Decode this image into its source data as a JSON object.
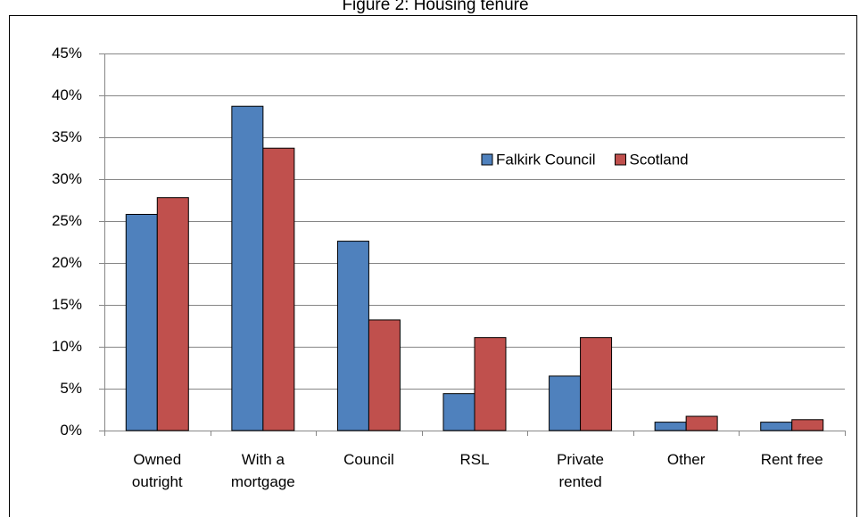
{
  "chart_data": {
    "type": "bar",
    "title": "Figure 2: Housing tenure",
    "categories": [
      "Owned\noutright",
      "With a\nmortgage",
      "Council",
      "RSL",
      "Private\nrented",
      "Other",
      "Rent free"
    ],
    "series": [
      {
        "name": "Falkirk Council",
        "color": "#4f81bd",
        "values": [
          25.8,
          38.7,
          22.6,
          4.4,
          6.5,
          1.0,
          1.0
        ]
      },
      {
        "name": "Scotland",
        "color": "#c0504d",
        "values": [
          27.8,
          33.7,
          13.2,
          11.1,
          11.1,
          1.7,
          1.3
        ]
      }
    ],
    "ylim": [
      0,
      45
    ],
    "yticks": [
      {
        "value": 0,
        "label": "0%"
      },
      {
        "value": 5,
        "label": "5%"
      },
      {
        "value": 10,
        "label": "10%"
      },
      {
        "value": 15,
        "label": "15%"
      },
      {
        "value": 20,
        "label": "20%"
      },
      {
        "value": 25,
        "label": "25%"
      },
      {
        "value": 30,
        "label": "30%"
      },
      {
        "value": 35,
        "label": "35%"
      },
      {
        "value": 40,
        "label": "40%"
      },
      {
        "value": 45,
        "label": "45%"
      }
    ],
    "grid": true
  }
}
